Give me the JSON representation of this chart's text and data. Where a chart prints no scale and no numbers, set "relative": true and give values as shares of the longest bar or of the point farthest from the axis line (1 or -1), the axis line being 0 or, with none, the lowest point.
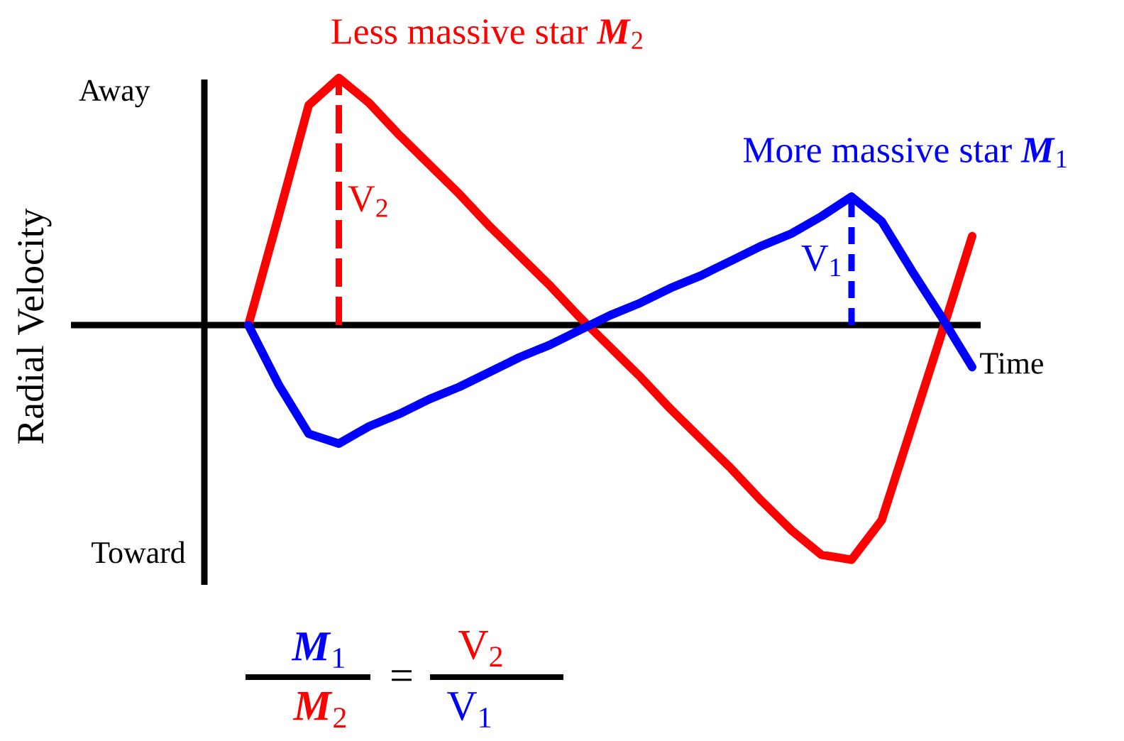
{
  "chart_data": {
    "type": "line",
    "relative": true,
    "xlabel": "Time",
    "ylabel": "Radial Velocity",
    "categories": [
      null,
      null,
      null,
      null,
      null,
      null,
      null,
      null,
      null,
      null,
      null,
      null,
      null,
      null,
      null,
      null,
      null,
      null,
      null,
      null,
      null,
      null,
      null,
      null,
      null
    ],
    "series": [
      {
        "name": "Less massive star **M**$_{2}$",
        "color": "#ff0000",
        "values": [
          0,
          0.44,
          0.89,
          1,
          0.9,
          0.77,
          0.65,
          0.53,
          0.4,
          0.28,
          0.16,
          0.03,
          -0.09,
          -0.21,
          -0.34,
          -0.46,
          -0.58,
          -0.71,
          -0.83,
          -0.93,
          -0.95,
          -0.79,
          -0.41,
          -0.03,
          0.36
        ]
      },
      {
        "name": "More massive star **M**$_{1}$",
        "color": "#0000ff",
        "values": [
          0,
          -0.24,
          -0.44,
          -0.48,
          -0.41,
          -0.36,
          -0.3,
          -0.25,
          -0.19,
          -0.13,
          -0.08,
          -0.02,
          0.04,
          0.09,
          0.15,
          0.2,
          0.26,
          0.32,
          0.37,
          0.44,
          0.52,
          0.42,
          0.22,
          0.03,
          -0.17
        ]
      }
    ],
    "annotations": [
      "Away",
      "Toward",
      "V$_{2}$",
      "V$_{1}$",
      "**M**$_{1}$",
      "**M**$_{2}$",
      "=",
      "V$_{2}$",
      "V$_{1}$"
    ]
  }
}
